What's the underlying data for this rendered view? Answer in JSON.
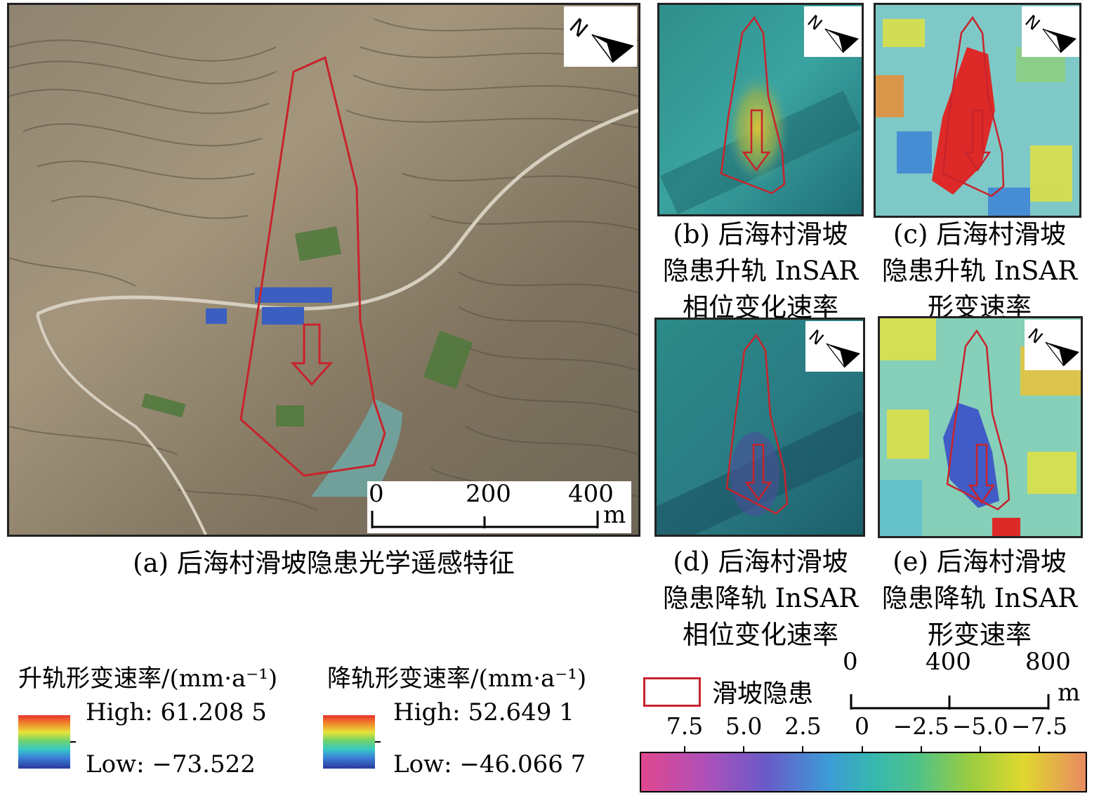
{
  "panels": {
    "a": {
      "caption": "(a) 后海村滑坡隐患光学遥感特征",
      "scale": {
        "labels": [
          "0",
          "200",
          "400"
        ],
        "unit": "m"
      }
    },
    "b": {
      "caption_lines": [
        "(b) 后海村滑坡",
        "隐患升轨 InSAR",
        "相位变化速率"
      ]
    },
    "c": {
      "caption_lines": [
        "(c) 后海村滑坡",
        "隐患升轨 InSAR",
        "形变速率"
      ]
    },
    "d": {
      "caption_lines": [
        "(d) 后海村滑坡",
        "隐患降轨 InSAR",
        "相位变化速率"
      ]
    },
    "e": {
      "caption_lines": [
        "(e) 后海村滑坡",
        "隐患降轨 InSAR",
        "形变速率"
      ]
    }
  },
  "legends": {
    "ascending": {
      "title": "升轨形变速率/(mm·a⁻¹)",
      "high": "High: 61.208 5",
      "low": "Low: −73.522"
    },
    "descending": {
      "title": "降轨形变速率/(mm·a⁻¹)",
      "high": "High: 52.649 1",
      "low": "Low: −46.066 7"
    },
    "landslide": {
      "label": "滑坡隐患"
    },
    "scale_small": {
      "labels": [
        "0",
        "400",
        "800"
      ],
      "unit": "m"
    },
    "phase_colorbar": {
      "ticks": [
        "7.5",
        "5.0",
        "2.5",
        "0",
        "−2.5",
        "−5.0",
        "−7.5"
      ],
      "colors": [
        "#e0488e",
        "#6a5ac8",
        "#3d9ad6",
        "#36b7b0",
        "#9acd40",
        "#e0d82e",
        "#e88a60"
      ]
    }
  },
  "colors": {
    "outline": "#c8232c",
    "north_arrow": "#000000"
  },
  "icons": [
    "north-arrow-icon",
    "flow-arrow-icon"
  ]
}
